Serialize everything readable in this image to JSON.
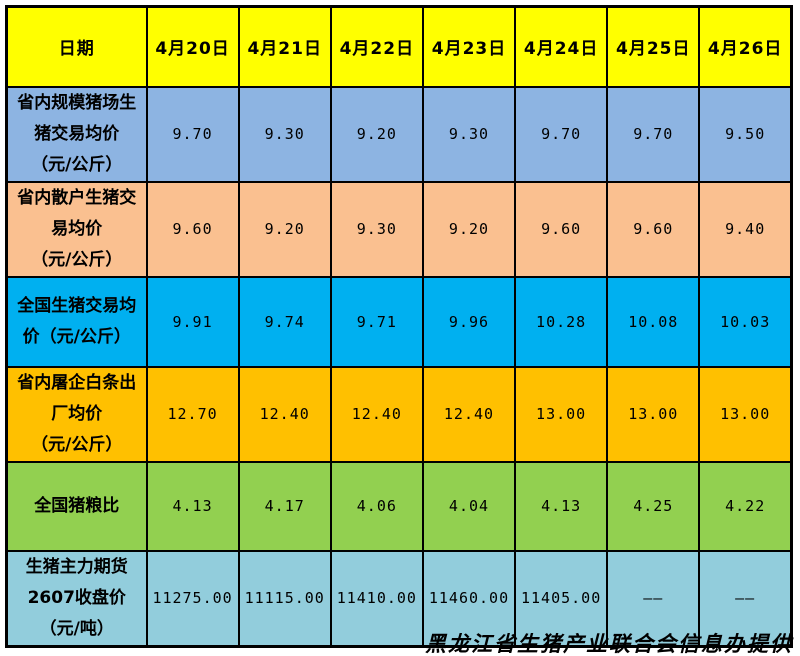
{
  "table": {
    "header": {
      "label": "日期",
      "bg": "#FFFF00",
      "dates": [
        "4月20日",
        "4月21日",
        "4月22日",
        "4月23日",
        "4月24日",
        "4月25日",
        "4月26日"
      ]
    },
    "rows": [
      {
        "id": "province-scale-farm-hog-price",
        "label": "省内规模猪场生猪交易均价（元/公斤）",
        "label_lines": [
          "省内规模猪场生",
          "猪交易均价",
          "（元/公斤）"
        ],
        "bg": "#8DB4E2",
        "values": [
          "9.70",
          "9.30",
          "9.20",
          "9.30",
          "9.70",
          "9.70",
          "9.50"
        ]
      },
      {
        "id": "province-smallholder-hog-price",
        "label": "省内散户生猪交易均价（元/公斤）",
        "label_lines": [
          "省内散户生猪交",
          "易均价",
          "（元/公斤）"
        ],
        "bg": "#FAC090",
        "values": [
          "9.60",
          "9.20",
          "9.30",
          "9.20",
          "9.60",
          "9.60",
          "9.40"
        ]
      },
      {
        "id": "national-hog-price",
        "label": "全国生猪交易均价（元/公斤）",
        "label_lines": [
          "全国生猪交易均",
          "价（元/公斤）"
        ],
        "bg": "#00B0F0",
        "values": [
          "9.91",
          "9.74",
          "9.71",
          "9.96",
          "10.28",
          "10.08",
          "10.03"
        ]
      },
      {
        "id": "province-slaughter-carcass-price",
        "label": "省内屠企白条出厂均价（元/公斤）",
        "label_lines": [
          "省内屠企白条出",
          "厂均价",
          "（元/公斤）"
        ],
        "bg": "#FFC000",
        "values": [
          "12.70",
          "12.40",
          "12.40",
          "12.40",
          "13.00",
          "13.00",
          "13.00"
        ]
      },
      {
        "id": "national-hog-grain-ratio",
        "label": "全国猪粮比",
        "label_lines": [
          "全国猪粮比"
        ],
        "bg": "#92D050",
        "values": [
          "4.13",
          "4.17",
          "4.06",
          "4.04",
          "4.13",
          "4.25",
          "4.22"
        ]
      },
      {
        "id": "hog-futures-2607-close",
        "label": "生猪主力期货2607收盘价（元/吨）",
        "label_lines": [
          "生猪主力期货",
          "2607收盘价",
          "（元/吨）"
        ],
        "bg": "#92CDDC",
        "values": [
          "11275.00",
          "11115.00",
          "11410.00",
          "11460.00",
          "11405.00",
          "——",
          "——"
        ]
      }
    ]
  },
  "footer": {
    "credit": "黑龙江省生猪产业联合会信息办提供"
  },
  "colors": {
    "border": "#000000",
    "background": "#FFFFFF"
  }
}
